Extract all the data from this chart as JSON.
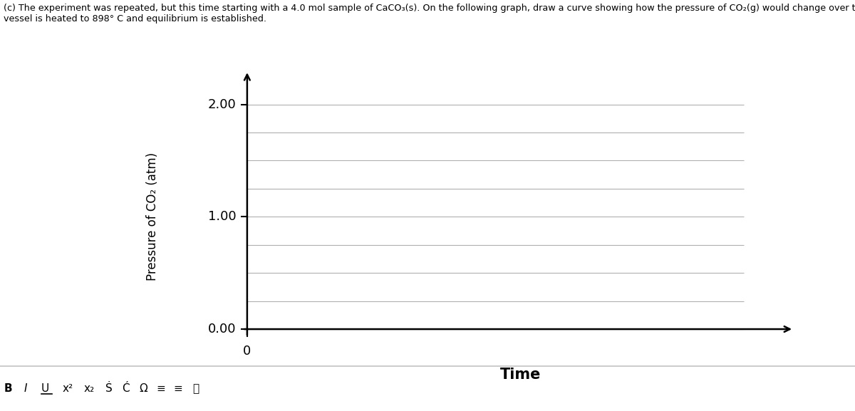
{
  "title_line1": "(c) The experiment was repeated, but this time starting with a 4.0 mol sample of CaCO₃(s). On the following graph, draw a curve showing how the pressure of CO₂(g) would change over time as the",
  "title_line2": "vessel is heated to 898° C and equilibrium is established.",
  "ylabel": "Pressure of CO₂ (atm)",
  "xlabel": "Time",
  "x_origin_label": "0",
  "ytick_values": [
    0.0,
    1.0,
    2.0
  ],
  "ytick_labels": [
    "0.00",
    "1.00",
    "2.00"
  ],
  "ymin": 0.0,
  "ymax": 2.0,
  "grid_interval": 0.25,
  "background_color": "#ffffff",
  "grid_color": "#b0b0b0",
  "axis_color": "#000000",
  "figure_width": 12.0,
  "figure_height": 5.77,
  "dpi": 100
}
